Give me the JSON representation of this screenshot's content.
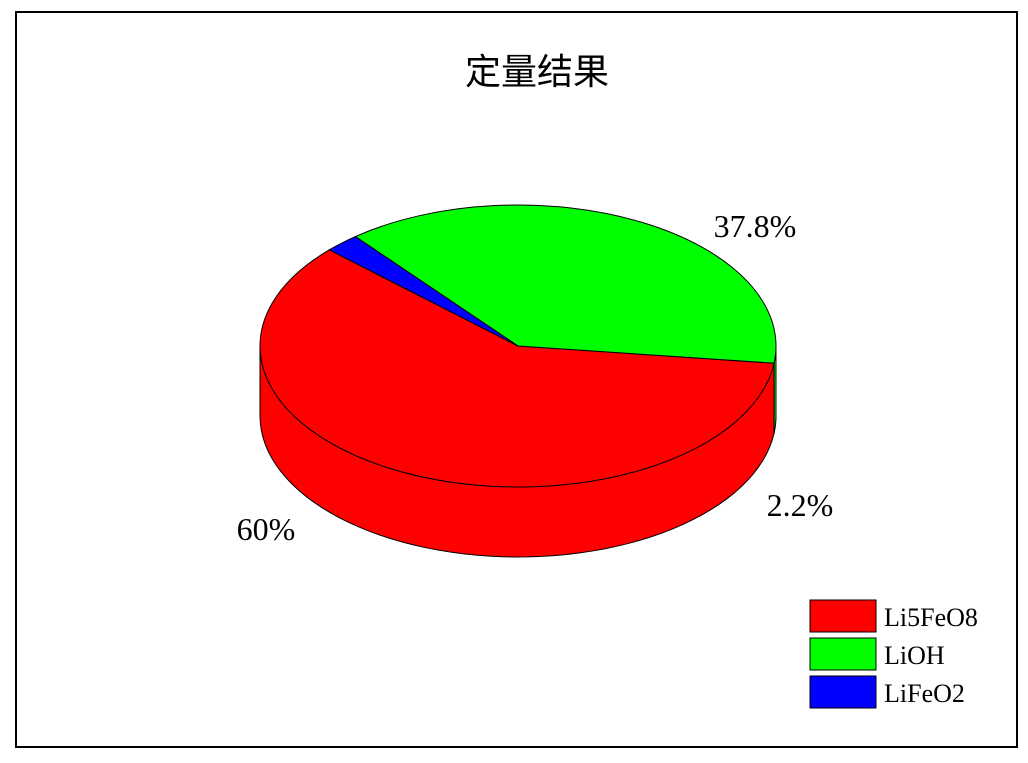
{
  "chart_data": {
    "type": "pie",
    "style": "3d",
    "title": "定量结果",
    "categories": [
      "Li5FeO8",
      "LiOH",
      "LiFeO2"
    ],
    "values": [
      60,
      37.8,
      2.2
    ],
    "labels": [
      "60%",
      "37.8%",
      "2.2%"
    ],
    "colors": [
      "#ff0000",
      "#00ff00",
      "#0000ff"
    ],
    "legend": "bottom-right"
  }
}
